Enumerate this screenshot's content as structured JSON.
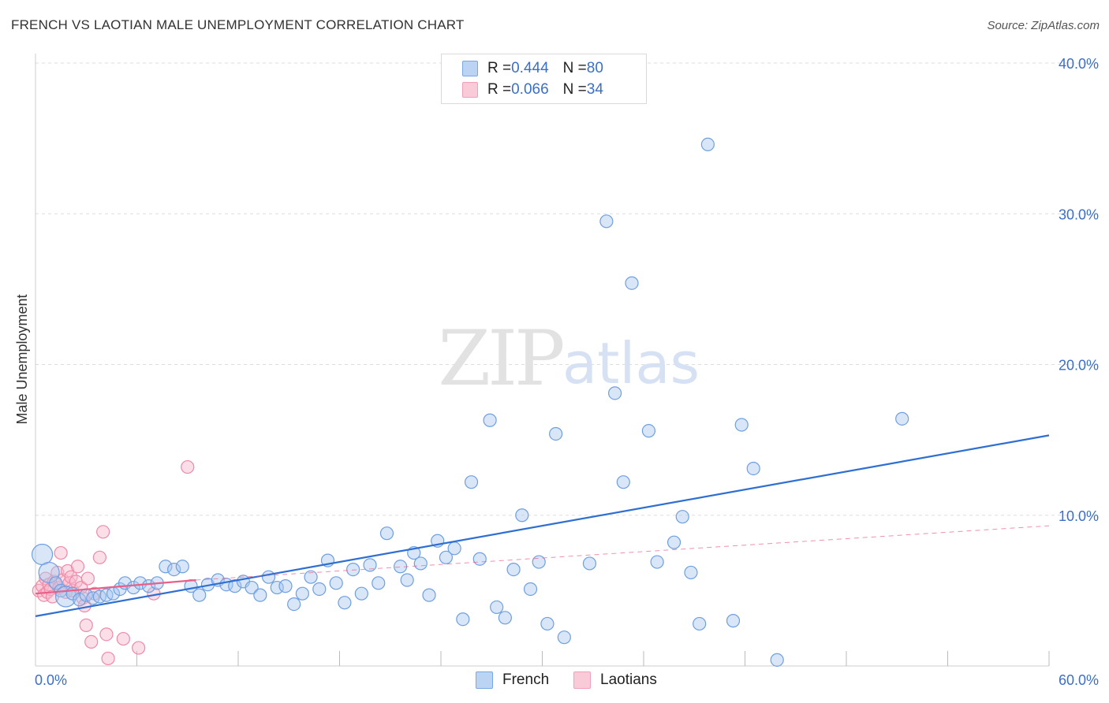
{
  "title": "FRENCH VS LAOTIAN MALE UNEMPLOYMENT CORRELATION CHART",
  "source": "Source: ZipAtlas.com",
  "watermark": {
    "zip": "ZIP",
    "atlas": "atlas"
  },
  "colors": {
    "french_fill": "#a9c8f0",
    "french_stroke": "#6f9fe0",
    "french_line": "#2e6fd1",
    "laotian_fill": "#f7b8cb",
    "laotian_stroke": "#ee8aa8",
    "laotian_line": "#e8608a",
    "axis_label": "#3a6fc9",
    "grid": "#dddddd"
  },
  "legend": {
    "french": {
      "r_label": "R = ",
      "r_value": "0.444",
      "n_label": "N = ",
      "n_value": "80",
      "name": "French"
    },
    "laotian": {
      "r_label": "R = ",
      "r_value": "0.066",
      "n_label": "N = ",
      "n_value": "34",
      "name": "Laotians"
    }
  },
  "chart_data": {
    "type": "scatter",
    "title": "FRENCH VS LAOTIAN MALE UNEMPLOYMENT CORRELATION CHART",
    "xlabel": "",
    "ylabel": "Male Unemployment",
    "xlim": [
      0,
      60
    ],
    "ylim": [
      0,
      40
    ],
    "x_tick_labels": [
      "0.0%",
      "60.0%"
    ],
    "y_ticks": [
      10,
      20,
      30,
      40
    ],
    "y_tick_labels": [
      "10.0%",
      "20.0%",
      "30.0%",
      "40.0%"
    ],
    "grid": true,
    "series": [
      {
        "name": "French",
        "trend": {
          "x": [
            0,
            60
          ],
          "y": [
            3.3,
            15.3
          ],
          "style": "solid"
        },
        "points": [
          {
            "x": 0.4,
            "y": 7.4,
            "big": true
          },
          {
            "x": 0.8,
            "y": 6.2,
            "big": true
          },
          {
            "x": 1.2,
            "y": 5.5
          },
          {
            "x": 1.5,
            "y": 5.0
          },
          {
            "x": 1.8,
            "y": 4.6,
            "big": true
          },
          {
            "x": 2.2,
            "y": 4.8
          },
          {
            "x": 2.6,
            "y": 4.4
          },
          {
            "x": 3.0,
            "y": 4.7
          },
          {
            "x": 3.4,
            "y": 4.5
          },
          {
            "x": 3.8,
            "y": 4.6
          },
          {
            "x": 4.2,
            "y": 4.7
          },
          {
            "x": 4.6,
            "y": 4.8
          },
          {
            "x": 5.0,
            "y": 5.1
          },
          {
            "x": 5.3,
            "y": 5.5
          },
          {
            "x": 5.8,
            "y": 5.2
          },
          {
            "x": 6.2,
            "y": 5.5
          },
          {
            "x": 6.7,
            "y": 5.3
          },
          {
            "x": 7.2,
            "y": 5.5
          },
          {
            "x": 7.7,
            "y": 6.6
          },
          {
            "x": 8.2,
            "y": 6.4
          },
          {
            "x": 8.7,
            "y": 6.6
          },
          {
            "x": 9.2,
            "y": 5.3
          },
          {
            "x": 9.7,
            "y": 4.7
          },
          {
            "x": 10.2,
            "y": 5.4
          },
          {
            "x": 10.8,
            "y": 5.7
          },
          {
            "x": 11.3,
            "y": 5.4
          },
          {
            "x": 11.8,
            "y": 5.3
          },
          {
            "x": 12.3,
            "y": 5.6
          },
          {
            "x": 12.8,
            "y": 5.2
          },
          {
            "x": 13.3,
            "y": 4.7
          },
          {
            "x": 13.8,
            "y": 5.9
          },
          {
            "x": 14.3,
            "y": 5.2
          },
          {
            "x": 14.8,
            "y": 5.3
          },
          {
            "x": 15.3,
            "y": 4.1
          },
          {
            "x": 15.8,
            "y": 4.8
          },
          {
            "x": 16.3,
            "y": 5.9
          },
          {
            "x": 16.8,
            "y": 5.1
          },
          {
            "x": 17.3,
            "y": 7.0
          },
          {
            "x": 17.8,
            "y": 5.5
          },
          {
            "x": 18.3,
            "y": 4.2
          },
          {
            "x": 18.8,
            "y": 6.4
          },
          {
            "x": 19.3,
            "y": 4.8
          },
          {
            "x": 19.8,
            "y": 6.7
          },
          {
            "x": 20.3,
            "y": 5.5
          },
          {
            "x": 20.8,
            "y": 8.8
          },
          {
            "x": 21.6,
            "y": 6.6
          },
          {
            "x": 22.0,
            "y": 5.7
          },
          {
            "x": 22.4,
            "y": 7.5
          },
          {
            "x": 22.8,
            "y": 6.8
          },
          {
            "x": 23.3,
            "y": 4.7
          },
          {
            "x": 23.8,
            "y": 8.3
          },
          {
            "x": 24.3,
            "y": 7.2
          },
          {
            "x": 24.8,
            "y": 7.8
          },
          {
            "x": 25.3,
            "y": 3.1
          },
          {
            "x": 25.8,
            "y": 12.2
          },
          {
            "x": 26.3,
            "y": 7.1
          },
          {
            "x": 26.9,
            "y": 16.3
          },
          {
            "x": 27.3,
            "y": 3.9
          },
          {
            "x": 27.8,
            "y": 3.2
          },
          {
            "x": 28.3,
            "y": 6.4
          },
          {
            "x": 28.8,
            "y": 10.0
          },
          {
            "x": 29.3,
            "y": 5.1
          },
          {
            "x": 29.8,
            "y": 6.9
          },
          {
            "x": 30.3,
            "y": 2.8
          },
          {
            "x": 30.8,
            "y": 15.4
          },
          {
            "x": 31.3,
            "y": 1.9
          },
          {
            "x": 32.8,
            "y": 6.8
          },
          {
            "x": 33.8,
            "y": 29.5
          },
          {
            "x": 34.3,
            "y": 18.1
          },
          {
            "x": 34.8,
            "y": 12.2
          },
          {
            "x": 35.3,
            "y": 25.4
          },
          {
            "x": 36.3,
            "y": 15.6
          },
          {
            "x": 36.8,
            "y": 6.9
          },
          {
            "x": 37.8,
            "y": 8.2
          },
          {
            "x": 38.3,
            "y": 9.9
          },
          {
            "x": 38.8,
            "y": 6.2
          },
          {
            "x": 39.3,
            "y": 2.8
          },
          {
            "x": 39.8,
            "y": 34.6
          },
          {
            "x": 41.3,
            "y": 3.0
          },
          {
            "x": 41.8,
            "y": 16.0
          },
          {
            "x": 42.5,
            "y": 13.1
          },
          {
            "x": 43.9,
            "y": 0.4
          },
          {
            "x": 51.3,
            "y": 16.4
          }
        ]
      },
      {
        "name": "Laotians",
        "trend": {
          "x": [
            0,
            9.5
          ],
          "y": [
            4.8,
            5.7
          ],
          "style": "solid",
          "extension": {
            "x": [
              9.5,
              60
            ],
            "y": [
              5.7,
              9.3
            ],
            "style": "dashed"
          }
        },
        "points": [
          {
            "x": 0.2,
            "y": 5.0
          },
          {
            "x": 0.4,
            "y": 5.3
          },
          {
            "x": 0.5,
            "y": 4.7
          },
          {
            "x": 0.6,
            "y": 5.8
          },
          {
            "x": 0.7,
            "y": 4.9
          },
          {
            "x": 0.8,
            "y": 5.4
          },
          {
            "x": 0.9,
            "y": 5.1
          },
          {
            "x": 1.0,
            "y": 4.6
          },
          {
            "x": 1.1,
            "y": 5.6
          },
          {
            "x": 1.3,
            "y": 6.2
          },
          {
            "x": 1.4,
            "y": 5.2
          },
          {
            "x": 1.5,
            "y": 7.5
          },
          {
            "x": 1.6,
            "y": 5.7
          },
          {
            "x": 1.8,
            "y": 4.9
          },
          {
            "x": 1.9,
            "y": 6.3
          },
          {
            "x": 2.0,
            "y": 5.5
          },
          {
            "x": 2.1,
            "y": 5.9
          },
          {
            "x": 2.2,
            "y": 5.0
          },
          {
            "x": 2.4,
            "y": 5.6
          },
          {
            "x": 2.5,
            "y": 6.6
          },
          {
            "x": 2.7,
            "y": 5.2
          },
          {
            "x": 2.8,
            "y": 4.5
          },
          {
            "x": 2.9,
            "y": 4.0
          },
          {
            "x": 3.0,
            "y": 2.7
          },
          {
            "x": 3.1,
            "y": 5.8
          },
          {
            "x": 3.3,
            "y": 1.6
          },
          {
            "x": 3.5,
            "y": 4.8
          },
          {
            "x": 3.8,
            "y": 7.2
          },
          {
            "x": 4.0,
            "y": 8.9
          },
          {
            "x": 4.2,
            "y": 2.1
          },
          {
            "x": 4.3,
            "y": 0.5
          },
          {
            "x": 5.2,
            "y": 1.8
          },
          {
            "x": 6.1,
            "y": 1.2
          },
          {
            "x": 7.0,
            "y": 4.8
          },
          {
            "x": 9.0,
            "y": 13.2
          }
        ]
      }
    ]
  }
}
